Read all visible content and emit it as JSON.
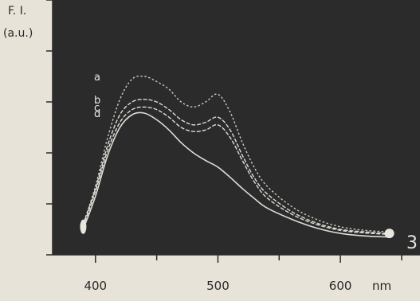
{
  "chart_data": {
    "type": "line",
    "ylabel_line1": "F. I.",
    "ylabel_line2": "(a.u.)",
    "x_ticks": [
      400,
      500,
      600
    ],
    "x_unit": "nm",
    "xlim": [
      365,
      665
    ],
    "ylim": [
      0,
      5
    ],
    "panel_label": "3",
    "colors": {
      "plot_bg": "#2b2b2b",
      "curve": "#e8e6df",
      "paper": "#e8e3d8"
    },
    "series": [
      {
        "label": "a",
        "x": [
          390,
          400,
          410,
          420,
          430,
          440,
          450,
          460,
          470,
          480,
          490,
          500,
          510,
          520,
          530,
          540,
          560,
          580,
          600,
          620,
          640
        ],
        "y": [
          0.6,
          1.35,
          2.3,
          3.05,
          3.45,
          3.5,
          3.4,
          3.25,
          3.0,
          2.9,
          3.0,
          3.15,
          2.8,
          2.2,
          1.7,
          1.35,
          0.95,
          0.7,
          0.55,
          0.48,
          0.45
        ]
      },
      {
        "label": "b",
        "x": [
          390,
          400,
          410,
          420,
          430,
          440,
          450,
          460,
          470,
          480,
          490,
          500,
          510,
          520,
          530,
          540,
          560,
          580,
          600,
          620,
          640
        ],
        "y": [
          0.6,
          1.3,
          2.15,
          2.75,
          3.0,
          3.05,
          3.0,
          2.85,
          2.65,
          2.55,
          2.6,
          2.7,
          2.45,
          1.95,
          1.5,
          1.2,
          0.85,
          0.63,
          0.5,
          0.45,
          0.42
        ]
      },
      {
        "label": "c",
        "x": [
          390,
          400,
          410,
          420,
          430,
          440,
          450,
          460,
          470,
          480,
          490,
          500,
          510,
          520,
          530,
          540,
          560,
          580,
          600,
          620,
          640
        ],
        "y": [
          0.55,
          1.25,
          2.05,
          2.6,
          2.85,
          2.9,
          2.85,
          2.7,
          2.5,
          2.42,
          2.45,
          2.55,
          2.3,
          1.85,
          1.42,
          1.12,
          0.8,
          0.6,
          0.48,
          0.43,
          0.4
        ]
      },
      {
        "label": "d",
        "x": [
          390,
          400,
          410,
          420,
          430,
          440,
          450,
          460,
          470,
          480,
          490,
          500,
          510,
          520,
          530,
          540,
          560,
          580,
          600,
          620,
          640
        ],
        "y": [
          0.5,
          1.15,
          1.95,
          2.5,
          2.75,
          2.78,
          2.65,
          2.45,
          2.2,
          2.0,
          1.85,
          1.72,
          1.52,
          1.3,
          1.1,
          0.92,
          0.7,
          0.53,
          0.42,
          0.37,
          0.35
        ]
      }
    ]
  }
}
